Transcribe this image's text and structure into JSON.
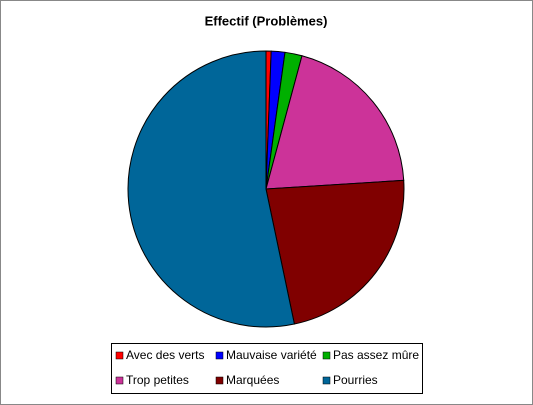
{
  "chart_data": {
    "type": "pie",
    "title": "Effectif  (Problèmes)",
    "categories": [
      "Avec des verts",
      "Mauvaise variété",
      "Pas assez mûre",
      "Trop petites",
      "Marquées",
      "Pourries"
    ],
    "values": [
      0.6,
      1.6,
      2,
      19.8,
      22.7,
      53.3
    ],
    "colors": [
      "#ff0000",
      "#0000ff",
      "#00b000",
      "#cc3399",
      "#800000",
      "#006699"
    ]
  }
}
